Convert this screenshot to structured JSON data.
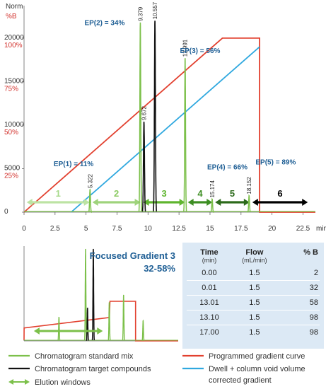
{
  "chart_data": [
    {
      "type": "line",
      "yleft_label": "Norm",
      "yright_label": "%B",
      "xunit": "min",
      "xlim": [
        0,
        23.5
      ],
      "ylim_left": [
        0,
        23000
      ],
      "ylim_right": [
        0,
        115
      ],
      "xticks": [
        "0",
        "2.5",
        "5",
        "7.5",
        "10",
        "12.5",
        "15",
        "17.5",
        "20",
        "22.5"
      ],
      "xtick_values": [
        0,
        2.5,
        5,
        7.5,
        10,
        12.5,
        15,
        17.5,
        20,
        22.5
      ],
      "yticks_left": [
        "0",
        "5000",
        "10000",
        "15000",
        "20000"
      ],
      "ytick_left_values": [
        0,
        5000,
        10000,
        15000,
        20000
      ],
      "yticks_right": [
        "25%",
        "50%",
        "75%",
        "100%"
      ],
      "ytick_right_values": [
        25,
        50,
        75,
        100
      ],
      "grid": false,
      "series": [
        {
          "name": "Chromatogram standard mix",
          "color": "#7cc04a",
          "peaks": [
            {
              "t": 5.322,
              "h": 2600,
              "label": "5.322"
            },
            {
              "t": 9.379,
              "h": 21800,
              "label": "9.379"
            },
            {
              "t": 12.991,
              "h": 17700,
              "label": "12.991"
            },
            {
              "t": 15.174,
              "h": 1500,
              "label": "15.174"
            },
            {
              "t": 18.152,
              "h": 1900,
              "label": "18.152"
            }
          ]
        },
        {
          "name": "Chromatogram target compounds",
          "color": "#111111",
          "peaks": [
            {
              "t": 9.672,
              "h": 10400,
              "label": "9.672"
            },
            {
              "t": 10.557,
              "h": 22000,
              "label": "10.557"
            }
          ]
        },
        {
          "name": "Programmed gradient curve",
          "color": "#e2402f",
          "axis": "right",
          "x": [
            0,
            16,
            19,
            19,
            23.5
          ],
          "y": [
            0,
            100,
            100,
            0,
            0
          ]
        },
        {
          "name": "Dwell + column void volume corrected gradient",
          "color": "#2fa8df",
          "axis": "right",
          "x": [
            3.8,
            19
          ],
          "y": [
            0,
            95
          ]
        }
      ],
      "annotations": [
        {
          "text": "EP(1) = 11%",
          "t": 4.0,
          "h": 5300
        },
        {
          "text": "EP(2) = 34%",
          "t": 6.5,
          "h": 21500
        },
        {
          "text": "EP(3) = 56%",
          "t": 14.2,
          "h": 18300
        },
        {
          "text": "EP(4) = 66%",
          "t": 16.4,
          "h": 4900
        },
        {
          "text": "EP(5) = 89%",
          "t": 20.3,
          "h": 5500
        }
      ],
      "elution_windows": [
        {
          "label": "1",
          "start": 0.1,
          "end": 5.4,
          "color": "#bde3a4",
          "text_color": "#a6d98a"
        },
        {
          "label": "2",
          "start": 5.4,
          "end": 9.5,
          "color": "#9fd37c",
          "text_color": "#8ccb63"
        },
        {
          "label": "3",
          "start": 9.5,
          "end": 13.1,
          "color": "#5fb52f",
          "text_color": "#5fb52f"
        },
        {
          "label": "4",
          "start": 13.1,
          "end": 15.3,
          "color": "#3d8e23",
          "text_color": "#3d8e23"
        },
        {
          "label": "5",
          "start": 15.3,
          "end": 18.3,
          "color": "#2c6a1b",
          "text_color": "#2c6a1b"
        },
        {
          "label": "6",
          "start": 18.3,
          "end": 23.0,
          "color": "#000000",
          "text_color": "#000000"
        }
      ]
    },
    {
      "type": "line",
      "title": "Focused Gradient 3",
      "subtitle": "32-58%",
      "xlim": [
        0,
        23.5
      ],
      "series": [
        {
          "name": "Chromatogram standard mix",
          "color": "#7cc04a",
          "peaks": [
            {
              "t": 5.322,
              "h": 0.26
            },
            {
              "t": 9.379,
              "h": 1.0
            },
            {
              "t": 12.991,
              "h": 0.42
            },
            {
              "t": 15.174,
              "h": 0.5
            },
            {
              "t": 18.152,
              "h": 0.22
            }
          ]
        },
        {
          "name": "Chromatogram target compounds",
          "color": "#111111",
          "peaks": [
            {
              "t": 9.672,
              "h": 0.36
            },
            {
              "t": 10.557,
              "h": 1.0
            }
          ]
        },
        {
          "name": "Programmed gradient curve",
          "color": "#e2402f",
          "x": [
            0,
            0.01,
            13.01,
            13.1,
            17.0,
            17.0,
            23.5
          ],
          "y": [
            0.02,
            0.32,
            0.58,
            0.98,
            0.98,
            0,
            0
          ]
        }
      ],
      "elution_window": {
        "start": 1.5,
        "end": 12.0,
        "color": "#7cc04a"
      }
    }
  ],
  "gradient_table": {
    "headers": [
      "Time",
      "Flow",
      "% B"
    ],
    "units": [
      "(min)",
      "(mL/min)",
      ""
    ],
    "rows": [
      [
        "0.00",
        "1.5",
        "2"
      ],
      [
        "0.01",
        "1.5",
        "32"
      ],
      [
        "13.01",
        "1.5",
        "58"
      ],
      [
        "13.10",
        "1.5",
        "98"
      ],
      [
        "17.00",
        "1.5",
        "98"
      ]
    ]
  },
  "legend": [
    {
      "id": "std",
      "label": "Chromatogram standard mix",
      "color": "#7cc04a",
      "kind": "line"
    },
    {
      "id": "grad",
      "label": "Programmed gradient curve",
      "color": "#e2402f",
      "kind": "line"
    },
    {
      "id": "target",
      "label": "Chromatogram target compounds",
      "color": "#111111",
      "kind": "line"
    },
    {
      "id": "dwell",
      "label": "Dwell + column void volume",
      "label2": "corrected gradient",
      "color": "#2fa8df",
      "kind": "line"
    },
    {
      "id": "win",
      "label": "Elution windows",
      "color": "#7cc04a",
      "kind": "arrow"
    }
  ]
}
